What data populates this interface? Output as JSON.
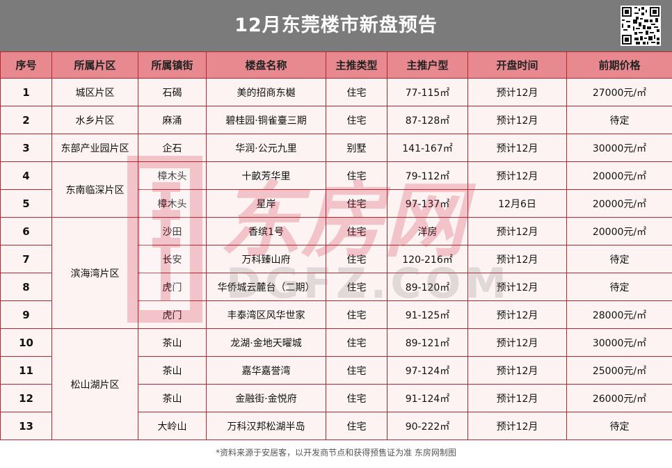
{
  "title": "12月东莞楼市新盘预告",
  "headers": [
    "序号",
    "所属片区",
    "所属镇街",
    "楼盘名称",
    "主推类型",
    "主推户型",
    "开盘时间",
    "前期价格"
  ],
  "rows": [
    {
      "no": "1",
      "area": "城区片区",
      "town": "石碣",
      "name": "美的招商东樾",
      "type": "住宅",
      "size": "77-115㎡",
      "open": "预计12月",
      "price": "27000元/㎡"
    },
    {
      "no": "2",
      "area": "水乡片区",
      "town": "麻涌",
      "name": "碧桂园·铜雀臺三期",
      "type": "住宅",
      "size": "87-128㎡",
      "open": "预计12月",
      "price": "待定"
    },
    {
      "no": "3",
      "area": "东部产业园片区",
      "town": "企石",
      "name": "华润·公元九里",
      "type": "别墅",
      "size": "141-167㎡",
      "open": "预计12月",
      "price": "30000元/㎡"
    },
    {
      "no": "4",
      "area": "东南临深片区",
      "town": "樟木头",
      "name": "十畝芳华里",
      "type": "住宅",
      "size": "79-112㎡",
      "open": "预计12月",
      "price": "20000元/㎡"
    },
    {
      "no": "5",
      "area": "",
      "town": "樟木头",
      "name": "星岸",
      "type": "住宅",
      "size": "97-137㎡",
      "open": "12月6日",
      "price": "20000元/㎡"
    },
    {
      "no": "6",
      "area": "滨海湾片区",
      "town": "沙田",
      "name": "香缤1号",
      "type": "住宅",
      "size": "洋房",
      "open": "预计12月",
      "price": "20000元/㎡"
    },
    {
      "no": "7",
      "area": "",
      "town": "长安",
      "name": "万科臻山府",
      "type": "住宅",
      "size": "120-216㎡",
      "open": "预计12月",
      "price": "待定"
    },
    {
      "no": "8",
      "area": "",
      "town": "虎门",
      "name": "华侨城云麓台（二期）",
      "type": "住宅",
      "size": "89-120㎡",
      "open": "预计12月",
      "price": "待定"
    },
    {
      "no": "9",
      "area": "",
      "town": "虎门",
      "name": "丰泰湾区风华世家",
      "type": "住宅",
      "size": "91-125㎡",
      "open": "预计12月",
      "price": "28000元/㎡"
    },
    {
      "no": "10",
      "area": "松山湖片区",
      "town": "茶山",
      "name": "龙湖·金地天曜城",
      "type": "住宅",
      "size": "89-121㎡",
      "open": "预计12月",
      "price": "30000元/㎡"
    },
    {
      "no": "11",
      "area": "",
      "town": "茶山",
      "name": "嘉华嘉誉湾",
      "type": "住宅",
      "size": "97-124㎡",
      "open": "预计12月",
      "price": "25000元/㎡"
    },
    {
      "no": "12",
      "area": "",
      "town": "茶山",
      "name": "金融街·金悦府",
      "type": "住宅",
      "size": "91-124㎡",
      "open": "预计12月",
      "price": "26000元/㎡"
    },
    {
      "no": "13",
      "area": "",
      "town": "大岭山",
      "name": "万科汉邦松湖半岛",
      "type": "住宅",
      "size": "90-222㎡",
      "open": "预计12月",
      "price": "待定"
    }
  ],
  "watermark": {
    "cn": "东房网",
    "en": "DGFZ.COM"
  },
  "footnote": "*资料来源于安居客，以开发商节点和获得预售证为准 东房网制图",
  "colors": {
    "header_bg": "#7b7b7b",
    "th_bg": "#e8898f",
    "row_bg": "#fdf3f3",
    "border": "#b0292f"
  }
}
